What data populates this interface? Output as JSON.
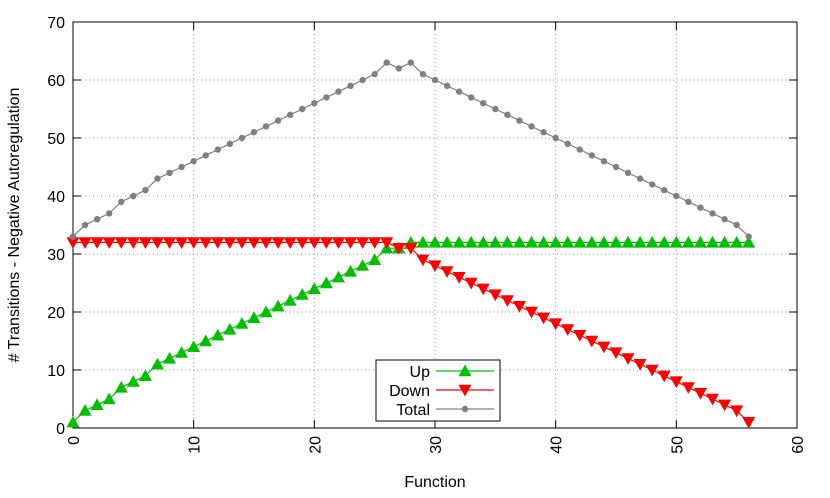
{
  "chart_data": {
    "type": "line",
    "xlabel": "Function",
    "ylabel": "# Transitions - Negative Autoregulation",
    "x": [
      0,
      1,
      2,
      3,
      4,
      5,
      6,
      7,
      8,
      9,
      10,
      11,
      12,
      13,
      14,
      15,
      16,
      17,
      18,
      19,
      20,
      21,
      22,
      23,
      24,
      25,
      26,
      27,
      28,
      29,
      30,
      31,
      32,
      33,
      34,
      35,
      36,
      37,
      38,
      39,
      40,
      41,
      42,
      43,
      44,
      45,
      46,
      47,
      48,
      49,
      50,
      51,
      52,
      53,
      54,
      55,
      56
    ],
    "series": [
      {
        "name": "Up",
        "color": "#00c000",
        "marker": "triangle-up",
        "values": [
          1,
          3,
          4,
          5,
          7,
          8,
          9,
          11,
          12,
          13,
          14,
          15,
          16,
          17,
          18,
          19,
          20,
          21,
          22,
          23,
          24,
          25,
          26,
          27,
          28,
          29,
          31,
          31,
          32,
          32,
          32,
          32,
          32,
          32,
          32,
          32,
          32,
          32,
          32,
          32,
          32,
          32,
          32,
          32,
          32,
          32,
          32,
          32,
          32,
          32,
          32,
          32,
          32,
          32,
          32,
          32,
          32
        ]
      },
      {
        "name": "Down",
        "color": "#ff0000",
        "marker": "triangle-down",
        "values": [
          32,
          32,
          32,
          32,
          32,
          32,
          32,
          32,
          32,
          32,
          32,
          32,
          32,
          32,
          32,
          32,
          32,
          32,
          32,
          32,
          32,
          32,
          32,
          32,
          32,
          32,
          32,
          31,
          31,
          29,
          28,
          27,
          26,
          25,
          24,
          23,
          22,
          21,
          20,
          19,
          18,
          17,
          16,
          15,
          14,
          13,
          12,
          11,
          10,
          9,
          8,
          7,
          6,
          5,
          4,
          3,
          1
        ]
      },
      {
        "name": "Total",
        "color": "#808080",
        "marker": "circle",
        "values": [
          33,
          35,
          36,
          37,
          39,
          40,
          41,
          43,
          44,
          45,
          46,
          47,
          48,
          49,
          50,
          51,
          52,
          53,
          54,
          55,
          56,
          57,
          58,
          59,
          60,
          61,
          63,
          62,
          63,
          61,
          60,
          59,
          58,
          57,
          56,
          55,
          54,
          53,
          52,
          51,
          50,
          49,
          48,
          47,
          46,
          45,
          44,
          43,
          42,
          41,
          40,
          39,
          38,
          37,
          36,
          35,
          33
        ]
      }
    ],
    "xlim": [
      0,
      60
    ],
    "xticks": [
      0,
      10,
      20,
      30,
      40,
      50,
      60
    ],
    "ylim": [
      0,
      70
    ],
    "yticks": [
      0,
      10,
      20,
      30,
      40,
      50,
      60,
      70
    ],
    "grid": true
  }
}
